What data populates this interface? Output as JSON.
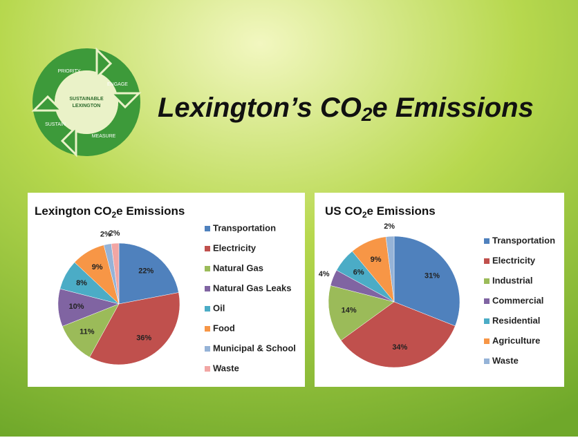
{
  "title": [
    "Lexington’s CO",
    "2",
    "e Emissions"
  ],
  "logo": {
    "center": [
      "SUSTAINABLE",
      "LEXINGTON"
    ],
    "steps": [
      "PRIORITY",
      "ENGAGE",
      "MEASURE",
      "SUSTAIN"
    ]
  },
  "chart_data": [
    {
      "type": "pie",
      "title": [
        "Lexington CO",
        "2",
        "e Emissions"
      ],
      "categories": [
        "Transportation",
        "Electricity",
        "Natural Gas",
        "Natural Gas Leaks",
        "Oil",
        "Food",
        "Municipal & School",
        "Waste"
      ],
      "values": [
        22,
        36,
        11,
        10,
        8,
        9,
        2,
        2
      ],
      "value_labels": [
        "22%",
        "36%",
        "11%",
        "10%",
        "8%",
        "9%",
        "2%",
        "2%"
      ],
      "colors": [
        "#4f81bd",
        "#c0504d",
        "#9bbb59",
        "#8064a2",
        "#4bacc6",
        "#f79646",
        "#95b3d7",
        "#f2a6a4"
      ],
      "legend": "right"
    },
    {
      "type": "pie",
      "title": [
        "US CO",
        "2",
        "e Emissions"
      ],
      "categories": [
        "Transportation",
        "Electricity",
        "Industrial",
        "Commercial",
        "Residential",
        "Agriculture",
        "Waste"
      ],
      "values": [
        31,
        34,
        14,
        4,
        6,
        9,
        2
      ],
      "value_labels": [
        "31%",
        "34%",
        "14%",
        "4%",
        "6%",
        "9%",
        "2%"
      ],
      "colors": [
        "#4f81bd",
        "#c0504d",
        "#9bbb59",
        "#8064a2",
        "#4bacc6",
        "#f79646",
        "#95b3d7"
      ],
      "legend": "right"
    }
  ]
}
